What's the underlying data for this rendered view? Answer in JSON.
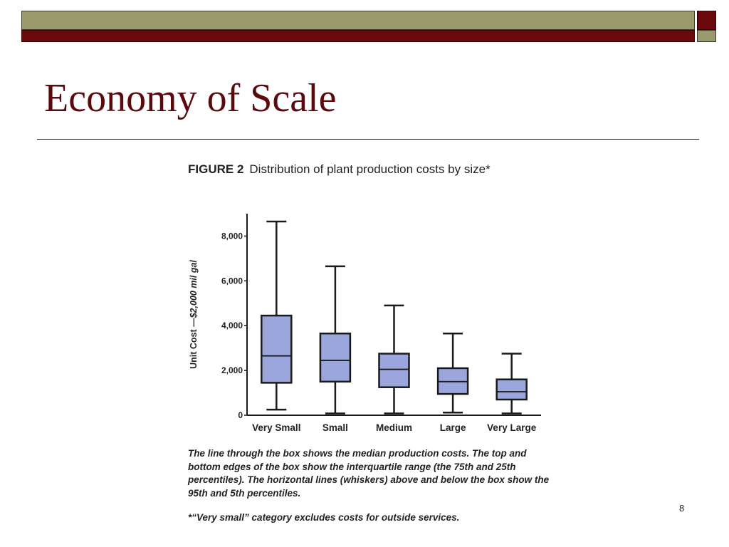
{
  "slide": {
    "title": "Economy of Scale",
    "page_number": "8",
    "colors": {
      "olive": "#9b9a6e",
      "maroon": "#6b0a0c",
      "box_fill": "#9aa6dc",
      "box_stroke": "#1a1a1a"
    }
  },
  "figure": {
    "label": "FIGURE 2",
    "title": "Distribution of plant production costs by size*",
    "caption": "The line through the box shows the median production costs. The top and bottom edges of the box show the interquartile range (the 75th and 25th percentiles). The horizontal lines (whiskers) above and below the box show the 95th and 5th percentiles.",
    "footnote": "*“Very small” category excludes costs for outside services."
  },
  "chart_data": {
    "type": "boxplot",
    "title": "Distribution of plant production costs by size*",
    "ylabel": "Unit Cost —$2,000 mil gal",
    "ylabel_prefix": "Unit Cost —",
    "ylabel_suffix": "$2,000 mil gal",
    "ylim": [
      0,
      9000
    ],
    "yticks": [
      0,
      2000,
      4000,
      6000,
      8000
    ],
    "ytick_labels": [
      "0",
      "2,000",
      "4,000",
      "6,000",
      "8,000"
    ],
    "categories": [
      "Very Small",
      "Small",
      "Medium",
      "Large",
      "Very Large"
    ],
    "boxes": [
      {
        "p5": 250,
        "p25": 1450,
        "median": 2650,
        "p75": 4450,
        "p95": 8650
      },
      {
        "p5": 80,
        "p25": 1500,
        "median": 2450,
        "p75": 3650,
        "p95": 6650
      },
      {
        "p5": 80,
        "p25": 1250,
        "median": 2050,
        "p75": 2750,
        "p95": 4900
      },
      {
        "p5": 120,
        "p25": 950,
        "median": 1500,
        "p75": 2100,
        "p95": 3650
      },
      {
        "p5": 80,
        "p25": 700,
        "median": 1050,
        "p75": 1600,
        "p95": 2750
      }
    ],
    "grid": false
  }
}
